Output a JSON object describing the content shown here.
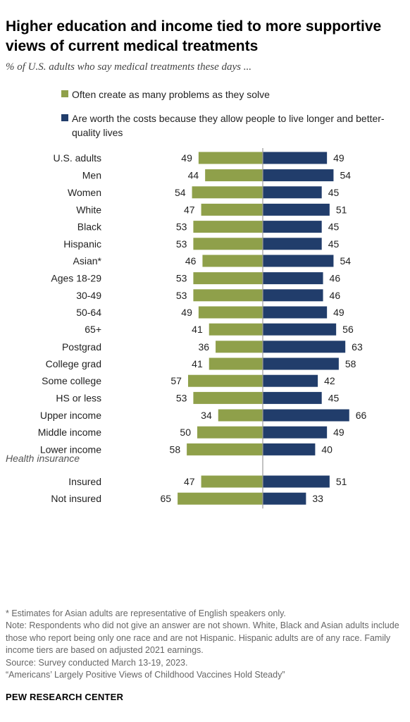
{
  "title": "Higher education and income tied to more supportive views of current medical treatments",
  "subtitle": "% of U.S. adults who say medical treatments these days ...",
  "colors": {
    "problems": "#8fa04a",
    "worth": "#213d6b",
    "axis": "#9a9a9a"
  },
  "chart_data": {
    "type": "bar",
    "orientation": "diverging-horizontal",
    "series": [
      {
        "name": "Often create as many problems as they solve",
        "direction": "left",
        "values": [
          49,
          44,
          54,
          47,
          53,
          53,
          46,
          53,
          53,
          49,
          41,
          36,
          41,
          57,
          53,
          34,
          50,
          58,
          47,
          65
        ]
      },
      {
        "name": "Are worth the costs because they allow people to live longer and better-quality lives",
        "direction": "right",
        "values": [
          49,
          54,
          45,
          51,
          45,
          45,
          54,
          46,
          46,
          49,
          56,
          63,
          58,
          42,
          45,
          66,
          49,
          40,
          51,
          33
        ]
      }
    ],
    "categories": [
      "U.S. adults",
      "Men",
      "Women",
      "White",
      "Black",
      "Hispanic",
      "Asian*",
      "Ages 18-29",
      "30-49",
      "50-64",
      "65+",
      "Postgrad",
      "College grad",
      "Some college",
      "HS or less",
      "Upper income",
      "Middle income",
      "Lower income",
      "Insured",
      "Not insured"
    ],
    "groups": [
      {
        "label": "",
        "rows": [
          0
        ]
      },
      {
        "label": "",
        "rows": [
          1,
          2
        ]
      },
      {
        "label": "",
        "rows": [
          3,
          4,
          5,
          6
        ]
      },
      {
        "label": "",
        "rows": [
          7,
          8,
          9,
          10
        ]
      },
      {
        "label": "",
        "rows": [
          11,
          12,
          13,
          14
        ]
      },
      {
        "label": "",
        "rows": [
          15,
          16,
          17
        ]
      },
      {
        "label": "Health insurance",
        "rows": [
          18,
          19
        ]
      }
    ],
    "legend_position": "top",
    "grid": false
  },
  "notes": [
    "* Estimates for Asian adults are representative of English speakers only.",
    "Note: Respondents who did not give an answer are not shown. White, Black and Asian adults include those who report being only one race and are not Hispanic. Hispanic adults are of any race. Family income tiers are based on adjusted 2021 earnings.",
    "Source: Survey conducted March 13-19, 2023.",
    "“Americans’ Largely Positive Views of Childhood Vaccines Hold Steady”"
  ],
  "brand": "PEW RESEARCH CENTER"
}
